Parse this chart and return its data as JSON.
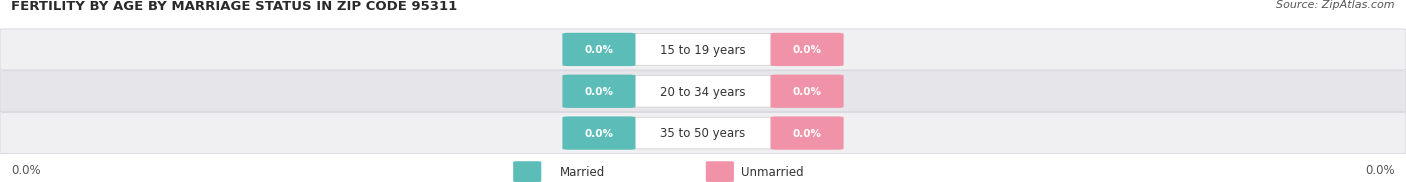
{
  "title": "FERTILITY BY AGE BY MARRIAGE STATUS IN ZIP CODE 95311",
  "source": "Source: ZipAtlas.com",
  "categories": [
    "15 to 19 years",
    "20 to 34 years",
    "35 to 50 years"
  ],
  "married_values": [
    0.0,
    0.0,
    0.0
  ],
  "unmarried_values": [
    0.0,
    0.0,
    0.0
  ],
  "married_color": "#5bbcb8",
  "unmarried_color": "#f093a8",
  "row_bg_light": "#f0f0f2",
  "row_bg_dark": "#e6e6ea",
  "title_fontsize": 9.5,
  "source_fontsize": 8,
  "legend_married": "Married",
  "legend_unmarried": "Unmarried",
  "left_label": "0.0%",
  "right_label": "0.0%",
  "background_color": "#ffffff"
}
